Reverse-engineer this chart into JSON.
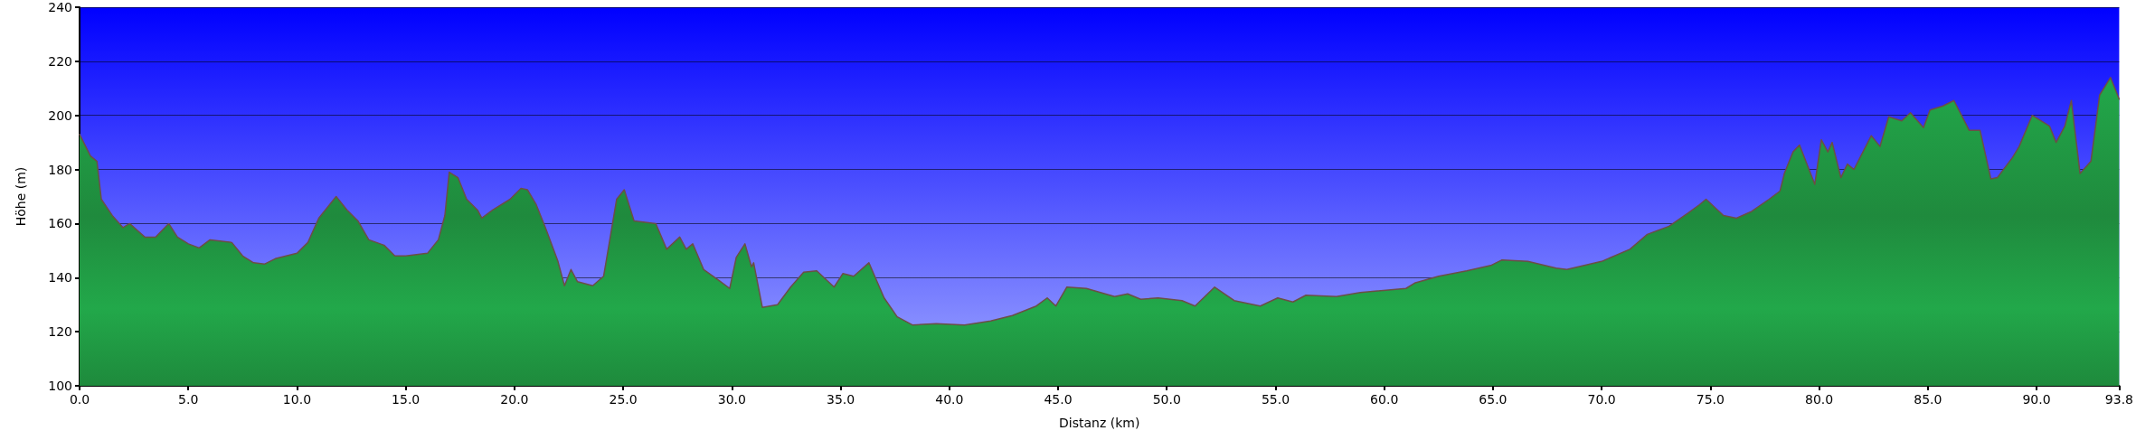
{
  "chart_data": {
    "type": "area",
    "xlabel": "Distanz (km)",
    "ylabel": "Höhe (m)",
    "x": [
      0,
      0.5,
      0.8,
      1.0,
      1.5,
      2.0,
      2.3,
      3.0,
      3.5,
      4.1,
      4.5,
      5.0,
      5.5,
      6.0,
      7.0,
      7.5,
      8.0,
      8.5,
      9.0,
      10.0,
      10.5,
      11.0,
      11.5,
      11.8,
      12.3,
      12.8,
      13.3,
      14.0,
      14.5,
      15.0,
      16.0,
      16.5,
      16.8,
      17.0,
      17.4,
      17.8,
      18.3,
      18.5,
      19.0,
      19.8,
      20.3,
      20.6,
      21.0,
      21.4,
      22.0,
      22.3,
      22.6,
      22.9,
      23.6,
      24.1,
      24.7,
      25.05,
      25.5,
      26.5,
      27.0,
      27.6,
      27.9,
      28.2,
      28.7,
      29.4,
      29.9,
      30.2,
      30.6,
      30.9,
      31.0,
      31.4,
      32.1,
      32.7,
      33.3,
      33.9,
      34.7,
      35.1,
      35.6,
      36.3,
      37.0,
      37.6,
      38.3,
      39.4,
      40.7,
      41.9,
      42.9,
      44.0,
      44.5,
      44.9,
      45.4,
      46.3,
      47.6,
      48.2,
      48.8,
      49.6,
      50.7,
      51.3,
      52.2,
      53.1,
      54.3,
      55.1,
      55.8,
      56.4,
      57.8,
      58.9,
      61.0,
      61.4,
      62.5,
      63.8,
      64.9,
      65.4,
      66.6,
      67.9,
      68.4,
      70.0,
      71.3,
      72.1,
      73.1,
      74.0,
      74.5,
      74.8,
      75.6,
      76.2,
      76.9,
      77.7,
      78.2,
      78.4,
      78.8,
      79.1,
      79.8,
      80.1,
      80.4,
      80.6,
      81.0,
      81.3,
      81.6,
      82.4,
      82.8,
      83.2,
      83.8,
      84.2,
      84.8,
      85.1,
      85.7,
      86.2,
      86.9,
      87.4,
      87.9,
      88.2,
      88.9,
      89.2,
      89.8,
      90.2,
      90.6,
      90.9,
      91.3,
      91.6,
      92.0,
      92.5,
      92.9,
      93.4,
      93.8
    ],
    "values": [
      193,
      185,
      183,
      169,
      163,
      158.5,
      160,
      155,
      155,
      160,
      155,
      152.5,
      151,
      154,
      153,
      148,
      145.5,
      145,
      147,
      149,
      153,
      162,
      167,
      170,
      165,
      161,
      154,
      152,
      148,
      148,
      149,
      154,
      163,
      179,
      177,
      169,
      165,
      162,
      165,
      169,
      173,
      172.5,
      167,
      159,
      146,
      137,
      143,
      138.5,
      137,
      140.5,
      169,
      172.5,
      161,
      160,
      150.5,
      155,
      150.5,
      152.5,
      143,
      139,
      136,
      147.5,
      152.5,
      144,
      145.5,
      129,
      130,
      136.5,
      142,
      142.5,
      136.5,
      141.5,
      140.5,
      145.5,
      132.5,
      125.5,
      122.5,
      123,
      122.5,
      124,
      126,
      129.5,
      132.5,
      129.5,
      136.5,
      136,
      133,
      134,
      132,
      132.5,
      131.5,
      129.5,
      136.5,
      131.5,
      129.5,
      132.5,
      131,
      133.5,
      133,
      134.5,
      136,
      138,
      140.5,
      142.5,
      144.5,
      146.5,
      146,
      143.5,
      143,
      146,
      150.5,
      156,
      159,
      164,
      167,
      169,
      163,
      162,
      164.5,
      169,
      172,
      178.5,
      186.5,
      189,
      174.5,
      191,
      186.5,
      190,
      177,
      182,
      180,
      192.5,
      188.5,
      199.5,
      198,
      201,
      195.5,
      202,
      203.5,
      205.5,
      194.5,
      194.5,
      176.5,
      177,
      184.5,
      188.5,
      200,
      198,
      196,
      190,
      196,
      205.5,
      178.5,
      183,
      207.5,
      214,
      206
    ],
    "color": "#22a84a",
    "xlim": [
      0,
      93.8
    ],
    "xticks": [
      {
        "value": 0,
        "label": "0.0"
      },
      {
        "value": 5,
        "label": "5.0"
      },
      {
        "value": 10,
        "label": "10.0"
      },
      {
        "value": 15,
        "label": "15.0"
      },
      {
        "value": 20,
        "label": "20.0"
      },
      {
        "value": 25,
        "label": "25.0"
      },
      {
        "value": 30,
        "label": "30.0"
      },
      {
        "value": 35,
        "label": "35.0"
      },
      {
        "value": 40,
        "label": "40.0"
      },
      {
        "value": 45,
        "label": "45.0"
      },
      {
        "value": 50,
        "label": "50.0"
      },
      {
        "value": 55,
        "label": "55.0"
      },
      {
        "value": 60,
        "label": "60.0"
      },
      {
        "value": 65,
        "label": "65.0"
      },
      {
        "value": 70,
        "label": "70.0"
      },
      {
        "value": 75,
        "label": "75.0"
      },
      {
        "value": 80,
        "label": "80.0"
      },
      {
        "value": 85,
        "label": "85.0"
      },
      {
        "value": 90,
        "label": "90.0"
      },
      {
        "value": 93.8,
        "label": "93.8"
      }
    ],
    "ylim": [
      100,
      240
    ],
    "yticks": [
      100,
      120,
      140,
      160,
      180,
      200,
      220,
      240
    ],
    "grid": "y",
    "marker": "none",
    "line_style": "solid"
  }
}
